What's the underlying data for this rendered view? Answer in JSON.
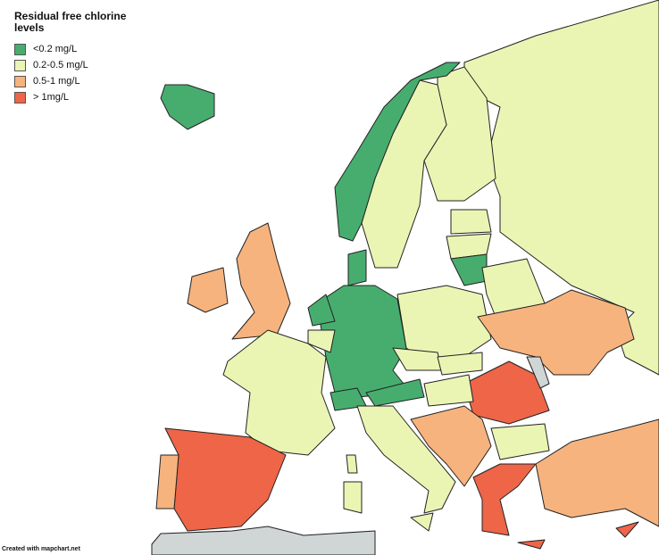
{
  "title": "Residual free chlorine levels",
  "legend": [
    {
      "label": "<0.2 mg/L",
      "color": "#47ad6f"
    },
    {
      "label": "0.2-0.5 mg/L",
      "color": "#eaf5b4"
    },
    {
      "label": "0.5-1 mg/L",
      "color": "#f7b37e"
    },
    {
      "label": "> 1mg/L",
      "color": "#ee6548"
    }
  ],
  "footer": "Created with mapchart.net"
}
